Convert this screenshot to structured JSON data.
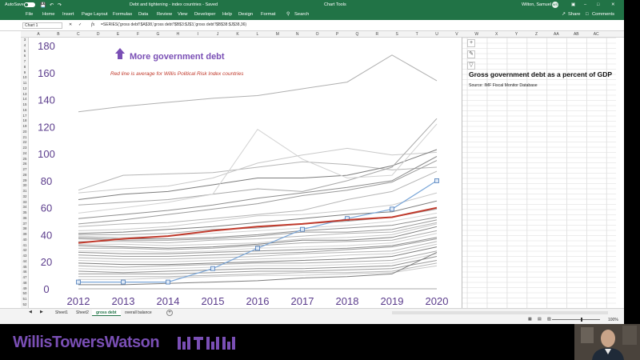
{
  "titlebar": {
    "autosave_label": "AutoSave",
    "title": "Debt and tightening - index countries  -  Saved",
    "context_tab": "Chart Tools",
    "user": "Wilton, Samuel",
    "user_initials": "WS"
  },
  "ribbon": {
    "tabs": [
      "File",
      "Home",
      "Insert",
      "Page Layout",
      "Formulas",
      "Data",
      "Review",
      "View",
      "Developer",
      "Help",
      "Design",
      "Format"
    ],
    "search_label": "Search",
    "share_label": "Share",
    "comments_label": "Comments"
  },
  "formula_bar": {
    "name_box": "Chart 1",
    "fx": "fx",
    "formula": "=SERIES('gross debt'!$A$38,'gross debt'!$B$3:$J$3,'gross debt'!$B$38:$J$38,36)"
  },
  "columns": [
    "A",
    "B",
    "C",
    "D",
    "E",
    "F",
    "G",
    "H",
    "I",
    "J",
    "K",
    "L",
    "M",
    "N",
    "O",
    "P",
    "Q",
    "R",
    "S",
    "T",
    "U",
    "V",
    "W",
    "X",
    "Y",
    "Z",
    "AA",
    "AB",
    "AC"
  ],
  "rows": [
    "3",
    "4",
    "5",
    "6",
    "7",
    "8",
    "9",
    "10",
    "11",
    "12",
    "13",
    "14",
    "15",
    "16",
    "17",
    "18",
    "19",
    "20",
    "21",
    "22",
    "23",
    "24",
    "25",
    "26",
    "27",
    "28",
    "29",
    "30",
    "31",
    "32",
    "33",
    "34",
    "35",
    "36",
    "37",
    "38",
    "39",
    "40",
    "41",
    "42",
    "43",
    "44",
    "45",
    "46",
    "47",
    "48",
    "49",
    "50",
    "51",
    "52"
  ],
  "side_panel": {
    "title": "Gross government debt as a percent of GDP",
    "source": "Source: IMF Fiscal Monitor Database"
  },
  "chart_data": {
    "type": "line",
    "annotation_top": "More government debt",
    "annotation_average": "Red line is average for Willis Political Risk Index countries",
    "x": [
      "2012",
      "2013",
      "2014",
      "2015",
      "2016",
      "2017",
      "2018",
      "2019",
      "2020"
    ],
    "y_ticks": [
      0,
      20,
      40,
      60,
      80,
      100,
      120,
      140,
      160,
      180
    ],
    "ylim": [
      0,
      180
    ],
    "average_color": "#c0392b",
    "series_color": "#8c8c8c",
    "highlight_color": "#7aa6d8",
    "accent_color": "#7a4fb5",
    "average": [
      34,
      37,
      39,
      43,
      46,
      48,
      51,
      53,
      60
    ],
    "selected_series": [
      5,
      5,
      5,
      15,
      30,
      44,
      52,
      59,
      80
    ],
    "series": [
      {
        "values": [
          131,
          135,
          138,
          141,
          143,
          148,
          153,
          173,
          154
        ]
      },
      {
        "values": [
          73,
          84,
          85,
          86,
          90,
          94,
          92,
          88,
          90
        ]
      },
      {
        "values": [
          71,
          74,
          76,
          82,
          93,
          99,
          104,
          99,
          101
        ]
      },
      {
        "values": [
          66,
          70,
          72,
          77,
          82,
          82,
          84,
          91,
          103
        ]
      },
      {
        "values": [
          62,
          64,
          66,
          70,
          74,
          72,
          80,
          90,
          126
        ]
      },
      {
        "values": [
          56,
          60,
          64,
          70,
          118,
          96,
          82,
          84,
          122
        ]
      },
      {
        "values": [
          52,
          55,
          58,
          62,
          67,
          71,
          75,
          80,
          98
        ]
      },
      {
        "values": [
          48,
          51,
          55,
          59,
          63,
          69,
          73,
          79,
          95
        ]
      },
      {
        "values": [
          46,
          48,
          49,
          52,
          55,
          58,
          66,
          72,
          87
        ]
      },
      {
        "values": [
          43,
          44,
          46,
          50,
          54,
          55,
          58,
          62,
          71
        ]
      },
      {
        "values": [
          41,
          42,
          44,
          46,
          49,
          52,
          55,
          57,
          65
        ]
      },
      {
        "values": [
          40,
          40,
          41,
          44,
          45,
          48,
          50,
          53,
          59
        ]
      },
      {
        "values": [
          39,
          38,
          39,
          41,
          43,
          45,
          47,
          50,
          56
        ]
      },
      {
        "values": [
          38,
          37,
          37,
          38,
          40,
          43,
          45,
          47,
          53
        ]
      },
      {
        "values": [
          37,
          36,
          36,
          37,
          39,
          42,
          42,
          44,
          51
        ]
      },
      {
        "values": [
          35,
          35,
          34,
          36,
          37,
          39,
          41,
          42,
          49
        ]
      },
      {
        "values": [
          33,
          33,
          32,
          33,
          34,
          37,
          38,
          40,
          48
        ]
      },
      {
        "values": [
          32,
          31,
          30,
          31,
          33,
          36,
          36,
          38,
          46
        ]
      },
      {
        "values": [
          30,
          30,
          29,
          30,
          32,
          34,
          35,
          36,
          43
        ]
      },
      {
        "values": [
          28,
          28,
          27,
          28,
          30,
          31,
          32,
          34,
          41
        ]
      },
      {
        "values": [
          27,
          26,
          26,
          27,
          28,
          29,
          30,
          32,
          38
        ]
      },
      {
        "values": [
          25,
          24,
          24,
          25,
          26,
          27,
          29,
          31,
          37
        ]
      },
      {
        "values": [
          23,
          22,
          22,
          23,
          24,
          26,
          27,
          28,
          35
        ]
      },
      {
        "values": [
          21,
          20,
          20,
          21,
          22,
          23,
          25,
          26,
          33
        ]
      },
      {
        "values": [
          19,
          18,
          18,
          19,
          20,
          21,
          22,
          24,
          31
        ]
      },
      {
        "values": [
          17,
          16,
          17,
          18,
          19,
          19,
          20,
          21,
          28
        ]
      },
      {
        "values": [
          15,
          14,
          15,
          16,
          17,
          17,
          18,
          19,
          26
        ]
      },
      {
        "values": [
          13,
          12,
          13,
          14,
          15,
          15,
          16,
          17,
          24
        ]
      },
      {
        "values": [
          11,
          11,
          11,
          12,
          13,
          13,
          14,
          15,
          21
        ]
      },
      {
        "values": [
          9,
          9,
          9,
          10,
          11,
          12,
          12,
          13,
          19
        ]
      },
      {
        "values": [
          7,
          7,
          8,
          9,
          10,
          10,
          11,
          12,
          17
        ]
      },
      {
        "values": [
          3,
          3,
          4,
          5,
          6,
          8,
          9,
          11,
          27
        ]
      },
      {
        "values": [
          0,
          0,
          0,
          0,
          0,
          0,
          0,
          0,
          0
        ]
      }
    ]
  },
  "sheets": {
    "tabs": [
      "Sheet1",
      "Sheet2",
      "gross debt",
      "overall balance"
    ],
    "active": "gross debt",
    "add_label": "+"
  },
  "status": {
    "zoom": "100%"
  },
  "brand": {
    "name": "WillisTowersWatson"
  }
}
